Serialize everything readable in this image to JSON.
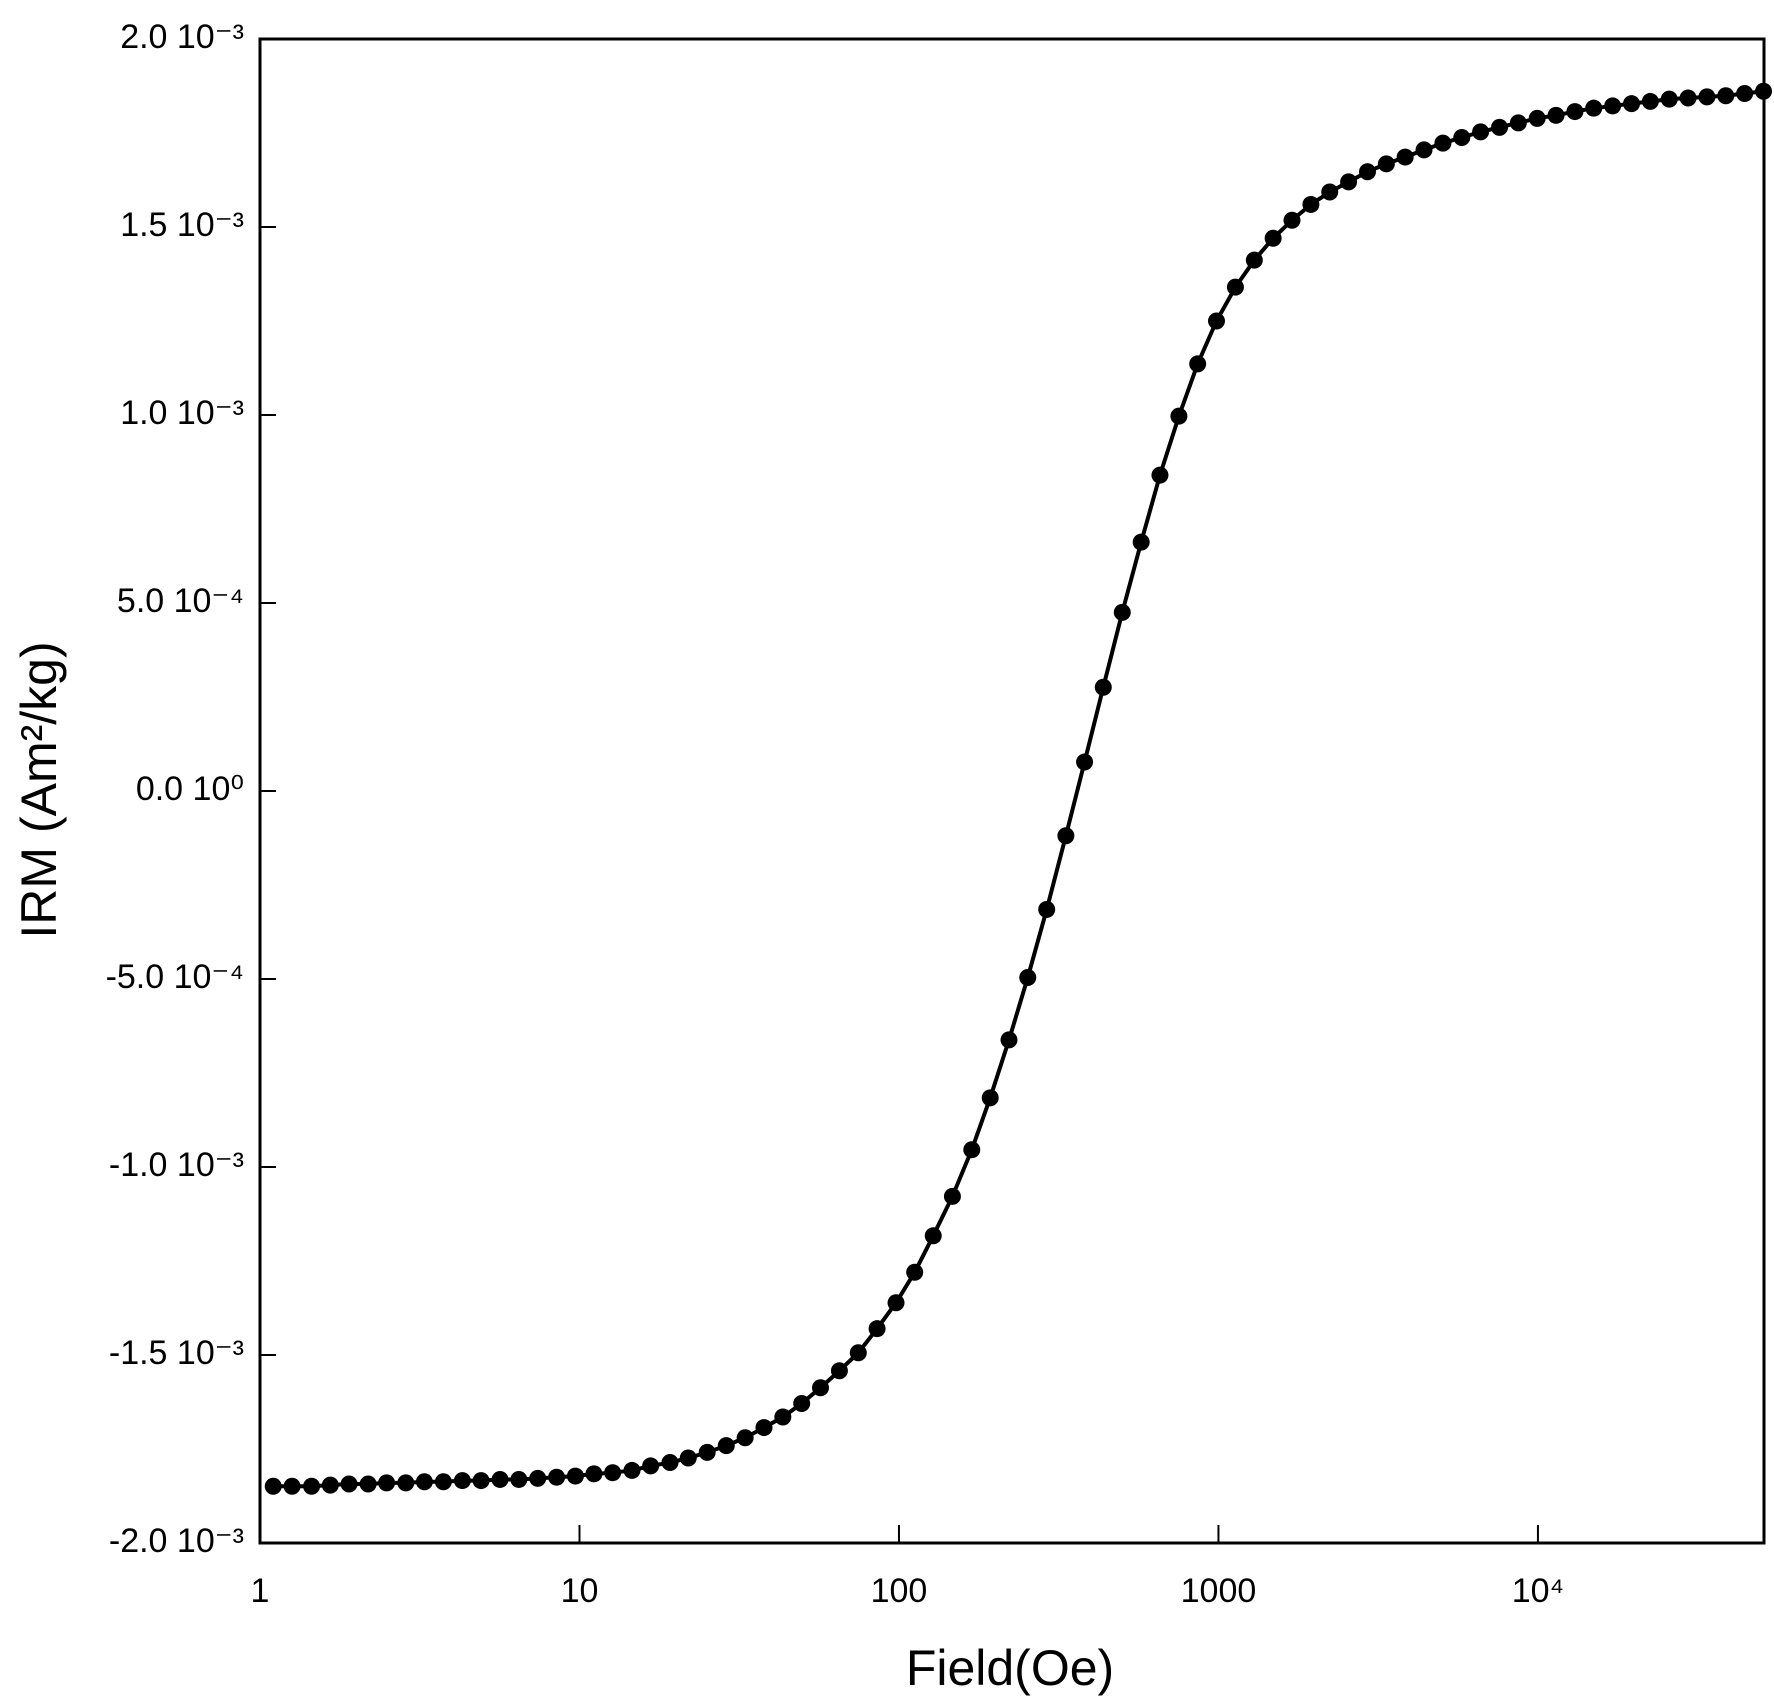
{
  "chart_data": {
    "type": "line",
    "x_label": "Field(Oe)",
    "y_label": "IRM (Am²/kg)",
    "xscale": "log",
    "xlim": [
      1,
      51000
    ],
    "xticks": [
      1,
      10,
      100,
      1000,
      {
        "value": 10000,
        "label": "10⁴"
      }
    ],
    "ylim": [
      -0.002,
      0.002
    ],
    "yticks": [
      {
        "value": -0.002,
        "label": "-2.0 10⁻³"
      },
      {
        "value": -0.0015,
        "label": "-1.5 10⁻³"
      },
      {
        "value": -0.001,
        "label": "-1.0 10⁻³"
      },
      {
        "value": -0.0005,
        "label": "-5.0 10⁻⁴"
      },
      {
        "value": 0,
        "label": "0.0 10⁰"
      },
      {
        "value": 0.0005,
        "label": "5.0 10⁻⁴"
      },
      {
        "value": 0.001,
        "label": "1.0 10⁻³"
      },
      {
        "value": 0.0015,
        "label": "1.5 10⁻³"
      },
      {
        "value": 0.002,
        "label": "2.0 10⁻³"
      }
    ],
    "grid": false,
    "markers": true,
    "x": [
      1.1,
      1.26,
      1.45,
      1.66,
      1.9,
      2.18,
      2.49,
      2.86,
      3.27,
      3.75,
      4.3,
      4.92,
      5.64,
      6.46,
      7.4,
      8.48,
      9.71,
      11.1,
      12.7,
      14.6,
      16.7,
      19.2,
      21.9,
      25.1,
      28.8,
      33.0,
      37.8,
      43.3,
      49.6,
      56.8,
      65.1,
      74.6,
      85.4,
      97.9,
      112,
      128,
      147,
      169,
      193,
      221,
      253,
      290,
      333,
      381,
      436,
      500,
      573,
      656,
      752,
      861,
      986,
      1130,
      1295,
      1483,
      1699,
      1947,
      2230,
      2555,
      2927,
      3354,
      3841,
      4400,
      5041,
      5776,
      6614,
      7580,
      8683,
      9945,
      11392,
      13054,
      14950,
      17130,
      19630,
      22480,
      25760,
      29510,
      33800,
      38720,
      44360,
      50820
    ],
    "series": [
      {
        "color": "#000000",
        "values": [
          -0.001849,
          -0.001849,
          -0.001849,
          -0.001846,
          -0.001843,
          -0.001843,
          -0.00184,
          -0.00184,
          -0.001837,
          -0.001837,
          -0.001834,
          -0.001834,
          -0.001831,
          -0.001831,
          -0.001828,
          -0.001825,
          -0.001822,
          -0.001816,
          -0.001813,
          -0.001807,
          -0.001795,
          -0.001786,
          -0.001774,
          -0.001759,
          -0.001741,
          -0.00172,
          -0.001693,
          -0.001665,
          -0.001629,
          -0.001587,
          -0.001542,
          -0.001494,
          -0.00143,
          -0.001361,
          -0.00128,
          -0.001183,
          -0.001078,
          -0.000954,
          -0.000816,
          -0.000662,
          -0.000496,
          -0.000315,
          -0.000119,
          7.7e-05,
          0.000276,
          0.000475,
          0.000662,
          0.00084,
          0.000997,
          0.001136,
          0.00125,
          0.00134,
          0.001412,
          0.00147,
          0.001518,
          0.00156,
          0.001593,
          0.00162,
          0.001647,
          0.001668,
          0.001686,
          0.001705,
          0.001723,
          0.001738,
          0.001753,
          0.001765,
          0.001777,
          0.001789,
          0.001797,
          0.001807,
          0.001816,
          0.001822,
          0.001828,
          0.001834,
          0.00184,
          0.001843,
          0.001846,
          0.001849,
          0.001855,
          0.001861
        ]
      }
    ]
  }
}
